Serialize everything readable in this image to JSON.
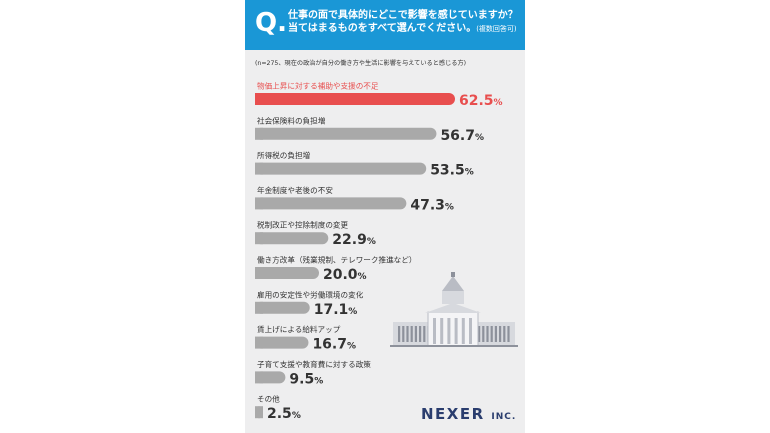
{
  "header": {
    "q_mark": "Q.",
    "line1": "仕事の面で具体的にどこで影響を感じていますか？",
    "line2": "当てはまるものをすべて選んでください。",
    "note": "(複数回答可)"
  },
  "sample_note": "(n=275、現在の政治が自分の働き方や生活に影響を与えていると感じる方)",
  "logo": {
    "main": "NEXER",
    "sub": "INC."
  },
  "colors": {
    "header_bg": "#1a97d6",
    "highlight": "#e84e4e",
    "bar": "#a9a9a9",
    "logo": "#2a3d6e"
  },
  "chart_data": {
    "type": "bar",
    "orientation": "horizontal",
    "categories": [
      "物価上昇に対する補助や支援の不足",
      "社会保険料の負担増",
      "所得税の負担増",
      "年金制度や老後の不安",
      "税制改正や控除制度の変更",
      "働き方改革（残業規制、テレワーク推進など）",
      "雇用の安定性や労働環境の変化",
      "賃上げによる給料アップ",
      "子育て支援や教育費に対する政策",
      "その他"
    ],
    "values": [
      62.5,
      56.7,
      53.5,
      47.3,
      22.9,
      20.0,
      17.1,
      16.7,
      9.5,
      2.5
    ],
    "value_labels": [
      "62.5",
      "56.7",
      "53.5",
      "47.3",
      "22.9",
      "20.0",
      "17.1",
      "16.7",
      "9.5",
      "2.5"
    ],
    "unit": "%",
    "highlight_index": 0,
    "xlim": [
      0,
      100
    ]
  }
}
